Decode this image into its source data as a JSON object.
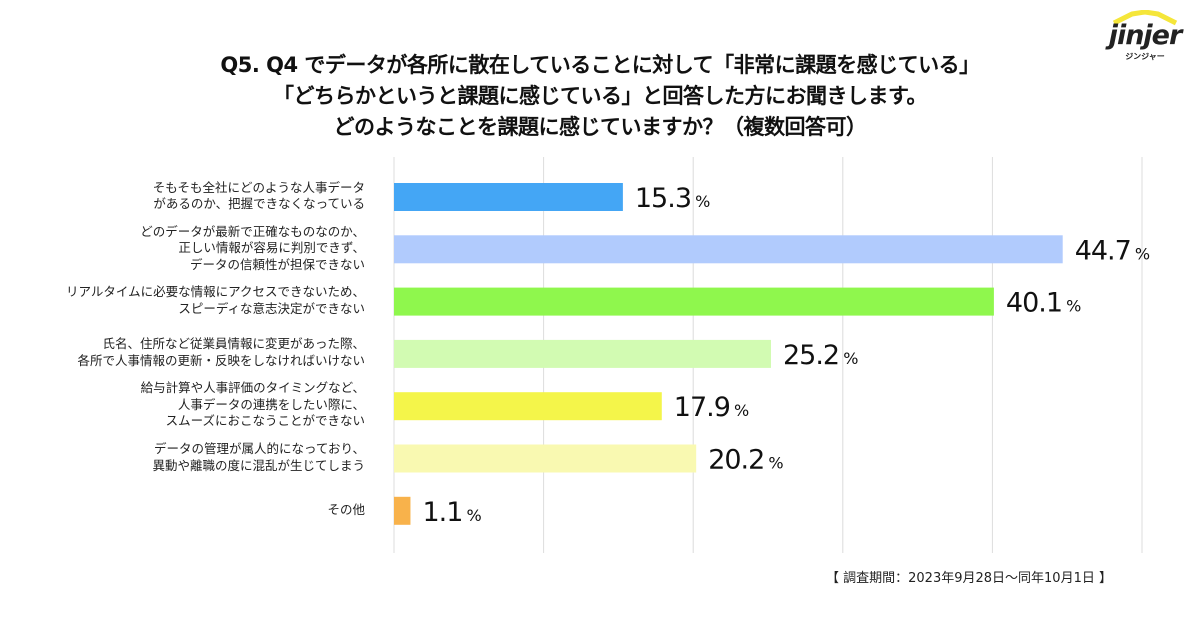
{
  "header": {
    "title_lines": [
      "Q5. Q4 でデータが各所に散在していることに対して「非常に課題を感じている」",
      "「どちらかというと課題に感じている」と回答した方にお聞きします。",
      "どのようなことを課題に感じていますか？（複数回答可）"
    ]
  },
  "logo": {
    "wordmark": "jinjer",
    "subtitle": "ジンジャー",
    "accent_color": "#f5e63a"
  },
  "footnote": "【 調査期間：2023年9月28日〜同年10月1日 】",
  "chart_data": {
    "type": "bar",
    "orientation": "horizontal",
    "title": "Q5. Q4 でデータが各所に散在していることに対して「非常に課題を感じている」「どちらかというと課題に感じている」と回答した方にお聞きします。どのようなことを課題に感じていますか？（複数回答可）",
    "xlabel": "",
    "ylabel": "",
    "xlim": [
      0,
      50
    ],
    "grid": true,
    "gridlines": [
      0,
      10,
      20,
      30,
      40,
      50
    ],
    "unit": "%",
    "categories": [
      [
        "そもそも全社にどのような人事データ",
        "があるのか、把握できなくなっている"
      ],
      [
        "どのデータが最新で正確なものなのか、",
        "正しい情報が容易に判別できず、",
        "データの信頼性が担保できない"
      ],
      [
        "リアルタイムに必要な情報にアクセスできないため、",
        "スピーディな意志決定ができない"
      ],
      [
        "氏名、住所など従業員情報に変更があった際、",
        "各所で人事情報の更新・反映をしなければいけない"
      ],
      [
        "給与計算や人事評価のタイミングなど、",
        "人事データの連携をしたい際に、",
        "スムーズにおこなうことができない"
      ],
      [
        "データの管理が属人的になっており、",
        "異動や離職の度に混乱が生じてしまう"
      ],
      [
        "その他"
      ]
    ],
    "values": [
      15.3,
      44.7,
      40.1,
      25.2,
      17.9,
      20.2,
      1.1
    ],
    "value_labels": [
      "15.3",
      "44.7",
      "40.1",
      "25.2",
      "17.9",
      "20.2",
      "1.1"
    ],
    "colors": [
      "#44a6f5",
      "#b1cbfd",
      "#8ff74d",
      "#d2fbb2",
      "#f4f54a",
      "#f9f9b1",
      "#f8b24b"
    ]
  }
}
